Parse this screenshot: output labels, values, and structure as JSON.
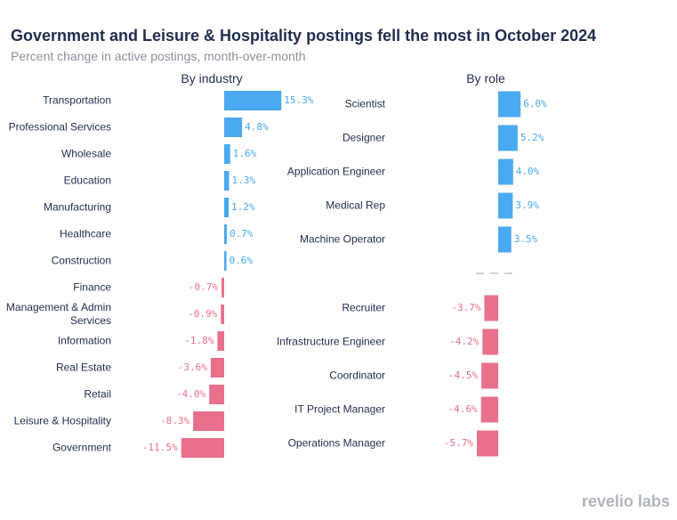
{
  "title": "Government and Leisure & Hospitality postings fell the most in October 2024",
  "subtitle": "Percent change in active postings, month-over-month",
  "logo": "revelio labs",
  "chart_data": [
    {
      "type": "bar",
      "orientation": "horizontal",
      "title": "By industry",
      "categories": [
        "Transportation",
        "Professional Services",
        "Wholesale",
        "Education",
        "Manufacturing",
        "Healthcare",
        "Construction",
        "Finance",
        "Management & Admin Services",
        "Information",
        "Real Estate",
        "Retail",
        "Leisure & Hospitality",
        "Government"
      ],
      "values": [
        15.3,
        4.8,
        1.6,
        1.3,
        1.2,
        0.7,
        0.6,
        -0.7,
        -0.9,
        -1.8,
        -3.6,
        -4.0,
        -8.3,
        -11.5
      ],
      "value_labels": [
        "15.3%",
        "4.8%",
        "1.6%",
        "1.3%",
        "1.2%",
        "0.7%",
        "0.6%",
        "-0.7%",
        "-0.9%",
        "-1.8%",
        "-3.6%",
        "-4.0%",
        "-8.3%",
        "-11.5%"
      ],
      "positive_color": "#4aa9f0",
      "negative_color": "#e8708c"
    },
    {
      "type": "bar",
      "orientation": "horizontal",
      "title": "By role",
      "categories": [
        "Scientist",
        "Designer",
        "Application Engineer",
        "Medical Rep",
        "Machine Operator",
        "Recruiter",
        "Infrastructure Engineer",
        "Coordinator",
        "IT Project Manager",
        "Operations Manager"
      ],
      "values": [
        6.0,
        5.2,
        4.0,
        3.9,
        3.5,
        -3.7,
        -4.2,
        -4.5,
        -4.6,
        -5.7
      ],
      "value_labels": [
        "6.0%",
        "5.2%",
        "4.0%",
        "3.9%",
        "3.5%",
        "-3.7%",
        "-4.2%",
        "-4.5%",
        "-4.6%",
        "-5.7%"
      ],
      "positive_color": "#4aa9f0",
      "negative_color": "#e8708c"
    }
  ]
}
